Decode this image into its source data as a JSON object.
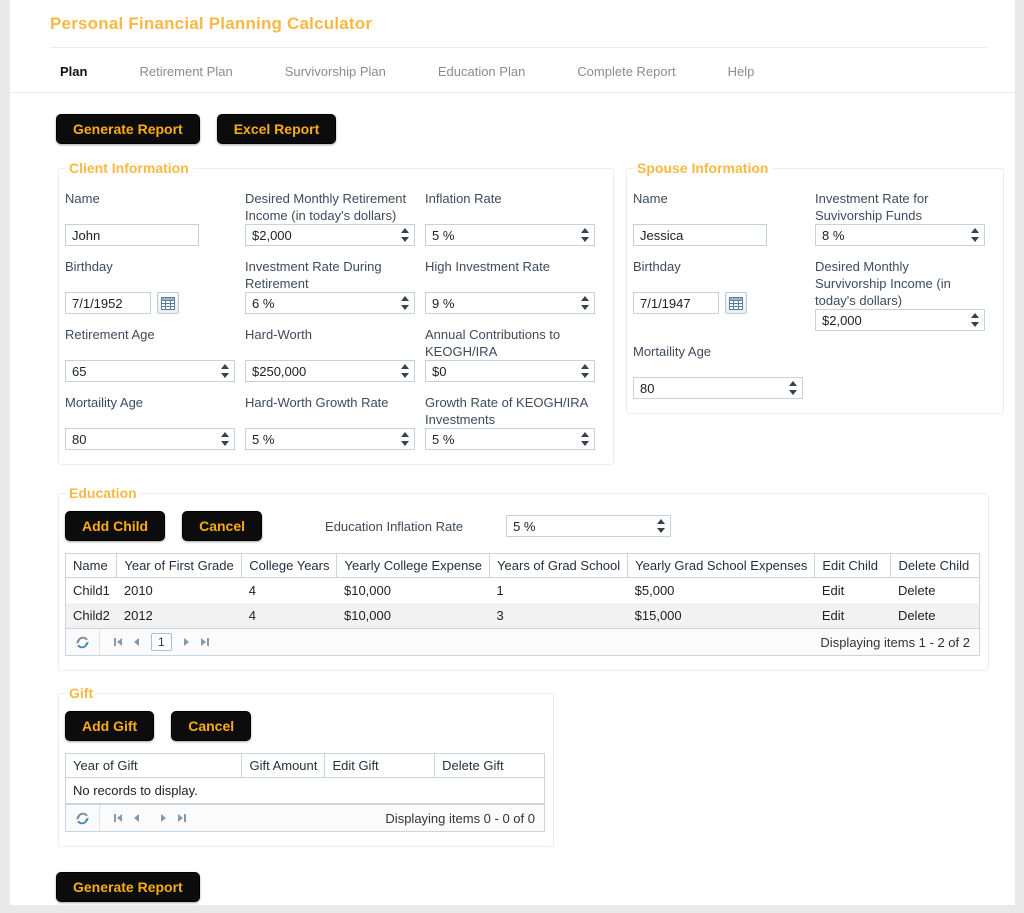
{
  "page": {
    "title": "Personal Financial Planning Calculator"
  },
  "colors": {
    "accent_orange": "#F9B843",
    "button_bg": "#0C0C0C",
    "button_text": "#FBAB18"
  },
  "tabs": [
    {
      "label": "Plan",
      "active": true
    },
    {
      "label": "Retirement Plan",
      "active": false
    },
    {
      "label": "Survivorship Plan",
      "active": false
    },
    {
      "label": "Education Plan",
      "active": false
    },
    {
      "label": "Complete Report",
      "active": false
    },
    {
      "label": "Help",
      "active": false
    }
  ],
  "toolbar": {
    "generate_report": "Generate Report",
    "excel_report": "Excel Report"
  },
  "client": {
    "legend": "Client Information",
    "name_label": "Name",
    "name_value": "John",
    "dmri_label": "Desired Monthly Retirement Income (in today's dollars)",
    "dmri_value": "$2,000",
    "inflation_label": "Inflation Rate",
    "inflation_value": "5 %",
    "birthday_label": "Birthday",
    "birthday_value": "7/1/1952",
    "invest_retire_label": "Investment Rate During Retirement",
    "invest_retire_value": "6 %",
    "high_invest_label": "High Investment Rate",
    "high_invest_value": "9 %",
    "retire_age_label": "Retirement Age",
    "retire_age_value": "65",
    "hard_worth_label": "Hard-Worth",
    "hard_worth_value": "$250,000",
    "keogh_contrib_label": "Annual Contributions to KEOGH/IRA",
    "keogh_contrib_value": "$0",
    "mortality_label": "Mortaility Age",
    "mortality_value": "80",
    "hw_growth_label": "Hard-Worth Growth Rate",
    "hw_growth_value": "5 %",
    "keogh_growth_label": "Growth Rate of KEOGH/IRA Investments",
    "keogh_growth_value": "5 %"
  },
  "spouse": {
    "legend": "Spouse Information",
    "name_label": "Name",
    "name_value": "Jessica",
    "invest_surv_label": "Investment Rate for Suvivorship Funds",
    "invest_surv_value": "8 %",
    "birthday_label": "Birthday",
    "birthday_value": "7/1/1947",
    "dmsi_label": "Desired Monthly Survivorship Income (in today's dollars)",
    "dmsi_value": "$2,000",
    "mortality_label": "Mortaility Age",
    "mortality_value": "80"
  },
  "education": {
    "legend": "Education",
    "add_button": "Add Child",
    "cancel_button": "Cancel",
    "inflation_label": "Education Inflation Rate",
    "inflation_value": "5 %",
    "table": {
      "headers": [
        "Name",
        "Year of First Grade",
        "College Years",
        "Yearly College Expense",
        "Years of Grad School",
        "Yearly Grad School Expenses",
        "Edit Child",
        "Delete Child"
      ],
      "rows": [
        [
          "Child1",
          "2010",
          "4",
          "$10,000",
          "1",
          "$5,000",
          "Edit",
          "Delete"
        ],
        [
          "Child2",
          "2012",
          "4",
          "$10,000",
          "3",
          "$15,000",
          "Edit",
          "Delete"
        ]
      ],
      "pager": {
        "page": "1",
        "status": "Displaying items 1 - 2 of 2"
      }
    }
  },
  "gift": {
    "legend": "Gift",
    "add_button": "Add Gift",
    "cancel_button": "Cancel",
    "table": {
      "headers": [
        "Year of Gift",
        "Gift Amount",
        "Edit Gift",
        "Delete Gift"
      ],
      "empty_message": "No records to display.",
      "pager": {
        "status": "Displaying items 0 - 0 of 0"
      }
    }
  },
  "footer": {
    "generate_report": "Generate Report"
  }
}
